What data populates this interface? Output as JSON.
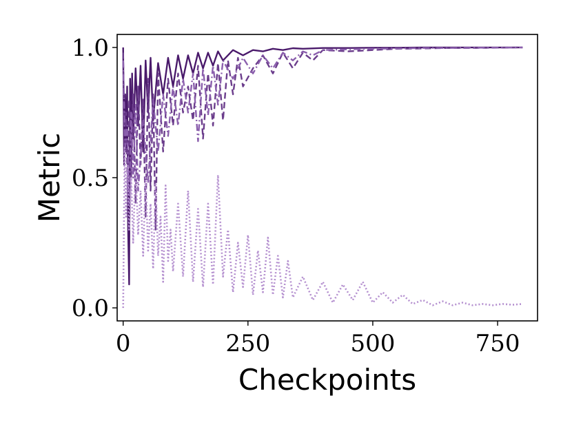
{
  "chart_data": {
    "type": "line",
    "xlabel": "Checkpoints",
    "ylabel": "Metric",
    "xlim": [
      -12,
      830
    ],
    "ylim": [
      -0.05,
      1.05
    ],
    "xticks": [
      0,
      250,
      500,
      750
    ],
    "xtick_labels": [
      "0",
      "250",
      "500",
      "750"
    ],
    "yticks": [
      0.0,
      0.5,
      1.0
    ],
    "ytick_labels": [
      "0.0",
      "0.5",
      "1.0"
    ],
    "grid": false,
    "legend": "none",
    "series": [
      {
        "style": "solid",
        "color": "#4a1a6b",
        "x": [
          0,
          2,
          4,
          6,
          8,
          10,
          12,
          14,
          16,
          18,
          20,
          25,
          30,
          35,
          40,
          45,
          50,
          55,
          60,
          70,
          80,
          90,
          100,
          110,
          120,
          130,
          140,
          150,
          160,
          170,
          180,
          190,
          200,
          220,
          240,
          260,
          280,
          300,
          320,
          340,
          360,
          400,
          450,
          500,
          550,
          600,
          650,
          700,
          750,
          800
        ],
        "y": [
          1.0,
          0.55,
          0.82,
          0.6,
          0.85,
          0.3,
          0.09,
          0.88,
          0.55,
          0.9,
          0.65,
          0.92,
          0.7,
          0.93,
          0.6,
          0.95,
          0.75,
          0.96,
          0.72,
          0.94,
          0.82,
          0.96,
          0.85,
          0.97,
          0.88,
          0.97,
          0.9,
          0.98,
          0.92,
          0.98,
          0.93,
          0.985,
          0.95,
          0.99,
          0.97,
          0.99,
          0.985,
          0.995,
          0.99,
          0.997,
          0.995,
          0.998,
          0.998,
          0.999,
          0.999,
          1.0,
          1.0,
          1.0,
          1.0,
          1.0
        ]
      },
      {
        "style": "dashed",
        "color": "#6b3d8c",
        "x": [
          0,
          3,
          6,
          9,
          12,
          16,
          20,
          25,
          30,
          35,
          40,
          45,
          50,
          55,
          60,
          65,
          70,
          80,
          90,
          100,
          110,
          120,
          130,
          140,
          150,
          160,
          170,
          180,
          190,
          200,
          210,
          220,
          230,
          240,
          260,
          280,
          300,
          320,
          340,
          360,
          380,
          400,
          450,
          500,
          550,
          600,
          650,
          700,
          750,
          800
        ],
        "y": [
          0.98,
          0.6,
          0.75,
          0.45,
          0.8,
          0.5,
          0.82,
          0.4,
          0.85,
          0.55,
          0.8,
          0.35,
          0.88,
          0.45,
          0.82,
          0.3,
          0.9,
          0.6,
          0.88,
          0.7,
          0.9,
          0.75,
          0.85,
          0.72,
          0.93,
          0.65,
          0.9,
          0.7,
          0.94,
          0.72,
          0.95,
          0.82,
          0.96,
          0.85,
          0.92,
          0.97,
          0.9,
          0.98,
          0.92,
          0.98,
          0.95,
          0.99,
          0.985,
          0.99,
          0.995,
          0.996,
          0.998,
          0.998,
          0.999,
          1.0
        ]
      },
      {
        "style": "dashdot",
        "color": "#8b5fad",
        "x": [
          0,
          4,
          8,
          12,
          16,
          20,
          25,
          30,
          40,
          50,
          60,
          70,
          80,
          90,
          100,
          110,
          120,
          130,
          140,
          150,
          160,
          170,
          180,
          190,
          200,
          220,
          240,
          260,
          280,
          300,
          320,
          340,
          360,
          380,
          400,
          450,
          500,
          550,
          600,
          650,
          700,
          750,
          800
        ],
        "y": [
          0.95,
          0.62,
          0.7,
          0.4,
          0.75,
          0.5,
          0.78,
          0.45,
          0.72,
          0.48,
          0.8,
          0.6,
          0.82,
          0.66,
          0.85,
          0.7,
          0.88,
          0.75,
          0.9,
          0.64,
          0.92,
          0.74,
          0.93,
          0.78,
          0.95,
          0.88,
          0.96,
          0.9,
          0.97,
          0.92,
          0.98,
          0.95,
          0.985,
          0.97,
          0.99,
          0.993,
          0.995,
          0.996,
          0.998,
          0.998,
          0.999,
          0.999,
          1.0
        ]
      },
      {
        "style": "dotted",
        "color": "#b48fcf",
        "x": [
          0,
          3,
          6,
          9,
          12,
          16,
          20,
          25,
          30,
          35,
          40,
          45,
          50,
          55,
          60,
          65,
          70,
          75,
          80,
          85,
          90,
          95,
          100,
          110,
          120,
          130,
          140,
          150,
          160,
          170,
          180,
          190,
          200,
          210,
          220,
          230,
          240,
          250,
          260,
          270,
          280,
          290,
          300,
          310,
          320,
          330,
          340,
          360,
          380,
          400,
          420,
          440,
          460,
          480,
          500,
          520,
          540,
          560,
          580,
          600,
          620,
          640,
          660,
          680,
          700,
          720,
          740,
          760,
          780,
          800
        ],
        "y": [
          0.0,
          0.62,
          0.35,
          0.55,
          0.3,
          0.5,
          0.25,
          0.55,
          0.28,
          0.45,
          0.2,
          0.5,
          0.22,
          0.4,
          0.15,
          0.48,
          0.2,
          0.35,
          0.1,
          0.47,
          0.18,
          0.3,
          0.14,
          0.4,
          0.12,
          0.45,
          0.1,
          0.38,
          0.08,
          0.4,
          0.09,
          0.51,
          0.12,
          0.3,
          0.06,
          0.25,
          0.08,
          0.28,
          0.05,
          0.22,
          0.06,
          0.27,
          0.05,
          0.2,
          0.04,
          0.18,
          0.04,
          0.12,
          0.03,
          0.1,
          0.02,
          0.09,
          0.03,
          0.1,
          0.02,
          0.06,
          0.02,
          0.05,
          0.015,
          0.03,
          0.01,
          0.025,
          0.01,
          0.02,
          0.01,
          0.015,
          0.01,
          0.015,
          0.012,
          0.015
        ]
      }
    ]
  }
}
